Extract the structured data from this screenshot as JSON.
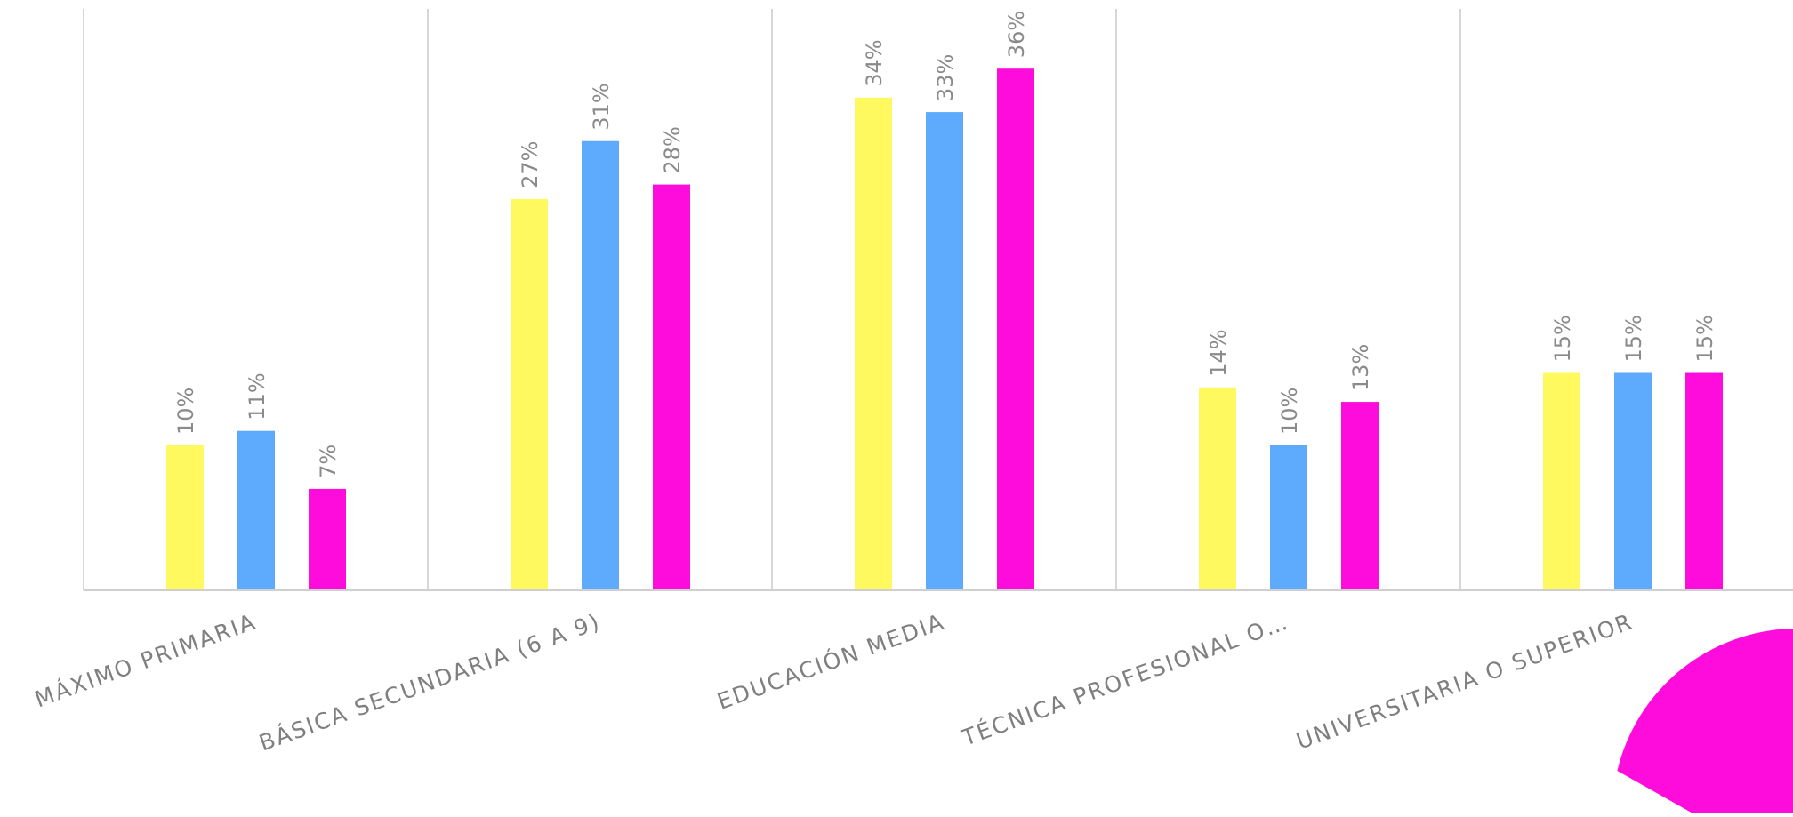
{
  "chart_data": {
    "type": "bar",
    "categories": [
      "MÁXIMO PRIMARIA",
      "BÁSICA SECUNDARIA (6 A 9)",
      "EDUCACIÓN MEDIA",
      "TÉCNICA PROFESIONAL O…",
      "UNIVERSITARIA O SUPERIOR"
    ],
    "series": [
      {
        "color": "#fdf95e",
        "values": [
          10,
          27,
          34,
          14,
          15
        ],
        "labels": [
          "10%",
          "27%",
          "34%",
          "14%",
          "15%"
        ]
      },
      {
        "color": "#5eaafd",
        "values": [
          11,
          31,
          33,
          10,
          15
        ],
        "labels": [
          "11%",
          "31%",
          "33%",
          "10%",
          "15%"
        ]
      },
      {
        "color": "#fd0cdb",
        "values": [
          7,
          28,
          36,
          13,
          15
        ],
        "labels": [
          "7%",
          "28%",
          "36%",
          "13%",
          "15%"
        ]
      }
    ],
    "ylim": [
      0,
      40
    ],
    "grid": false,
    "value_labels": "rotated above bars",
    "legend": "none"
  },
  "decoration": {
    "shape": "magenta circle partially visible at bottom-right corner",
    "color": "#fd0cdb"
  }
}
